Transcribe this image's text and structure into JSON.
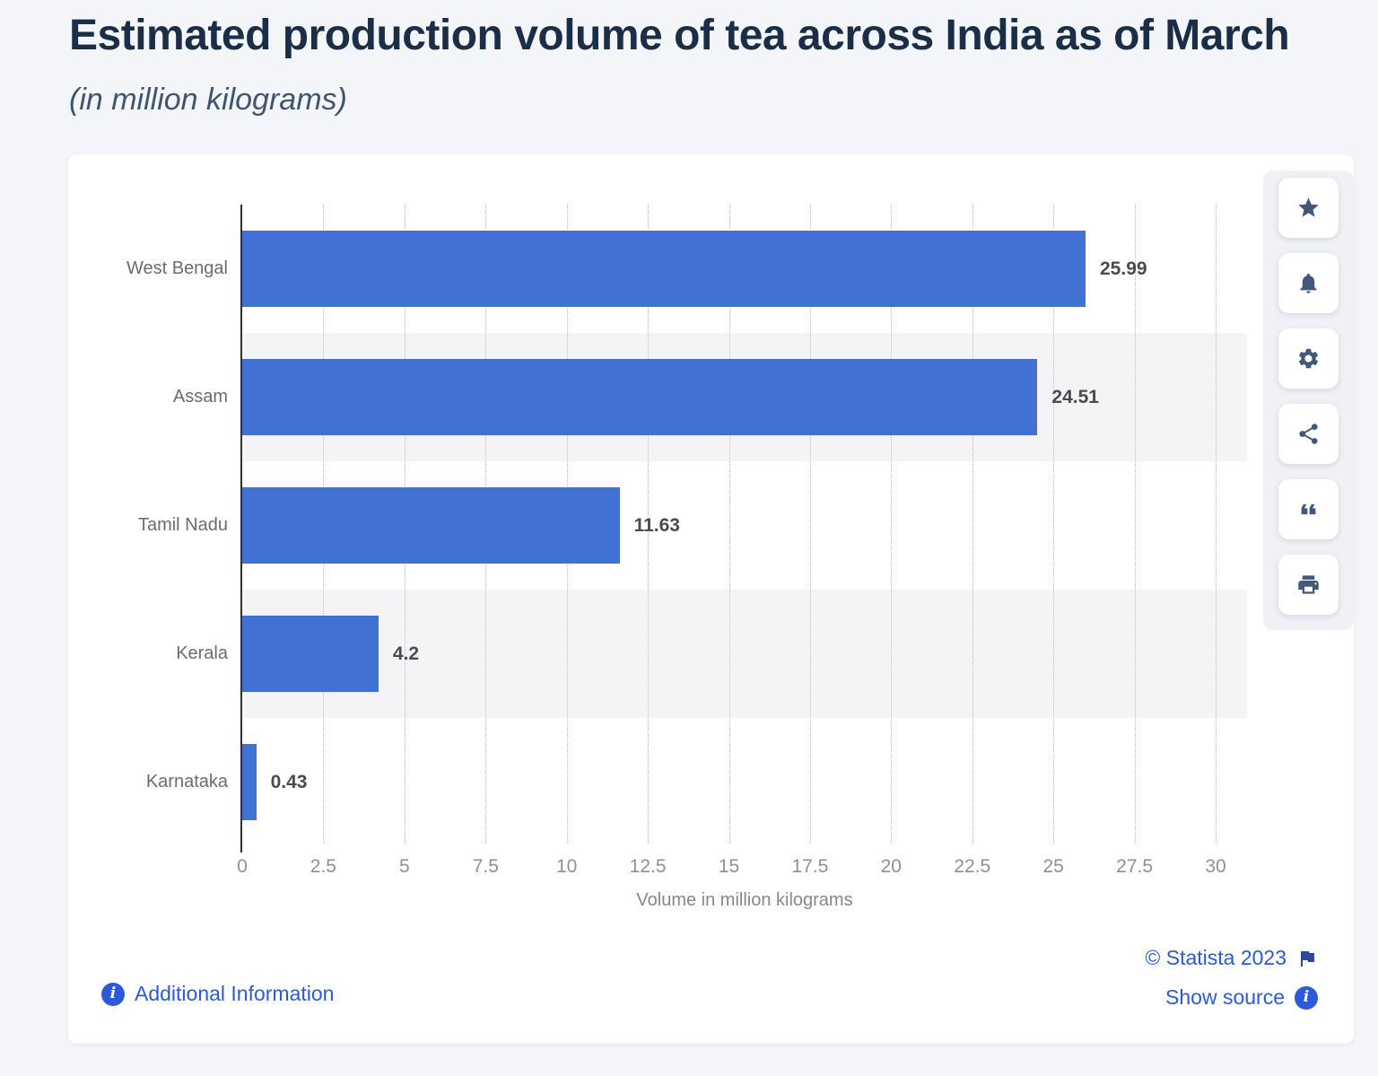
{
  "page": {
    "title": "Estimated production volume of tea across India as of March",
    "subtitle": "(in million kilograms)",
    "background_color": "#f4f5f8",
    "card_color": "#ffffff",
    "title_color": "#1a2f47"
  },
  "chart_data": {
    "type": "bar",
    "orientation": "horizontal",
    "title": "Estimated production volume of tea across India as of March",
    "subtitle": "(in million kilograms)",
    "categories": [
      "West Bengal",
      "Assam",
      "Tamil Nadu",
      "Kerala",
      "Karnataka"
    ],
    "values": [
      25.99,
      24.51,
      11.63,
      4.2,
      0.43
    ],
    "value_labels": [
      "25.99",
      "24.51",
      "11.63",
      "4.2",
      "0.43"
    ],
    "xlabel": "Volume in million kilograms",
    "ylabel": "",
    "xlim": [
      0,
      30
    ],
    "x_tick_values": [
      0,
      2.5,
      5,
      7.5,
      10,
      12.5,
      15,
      17.5,
      20,
      22.5,
      25,
      27.5,
      30
    ],
    "x_tick_labels": [
      "0",
      "2.5",
      "5",
      "7.5",
      "10",
      "12.5",
      "15",
      "17.5",
      "20",
      "22.5",
      "25",
      "27.5",
      "30"
    ],
    "grid": "vertical-dotted",
    "legend": "none",
    "bar_color": "#4171d2",
    "stripe_color": "#f4f4f6"
  },
  "toolbar": {
    "icon_color": "#42587b",
    "buttons": [
      {
        "label": "favorite",
        "icon": "star-icon"
      },
      {
        "label": "notifications",
        "icon": "bell-icon"
      },
      {
        "label": "settings",
        "icon": "gear-icon"
      },
      {
        "label": "share",
        "icon": "share-icon"
      },
      {
        "label": "citation",
        "icon": "quote-icon"
      },
      {
        "label": "print",
        "icon": "print-icon"
      }
    ]
  },
  "footer": {
    "additional_information_label": "Additional Information",
    "copyright_label": "© Statista 2023",
    "show_source_label": "Show source",
    "link_color": "#2c59db",
    "flag_color": "#2d479c"
  }
}
